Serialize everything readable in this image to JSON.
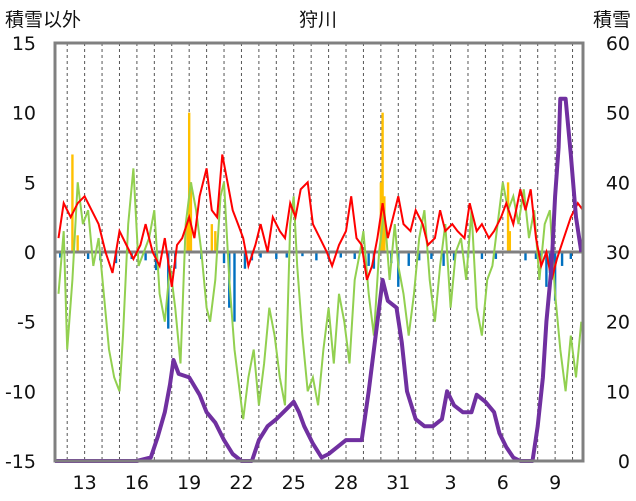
{
  "chart_data": {
    "type": "line",
    "title": "狩川",
    "left_axis": {
      "label": "積雪以外",
      "ticks": [
        15,
        10,
        5,
        0,
        -5,
        -10,
        -15
      ],
      "ylim": [
        -15,
        15
      ]
    },
    "right_axis": {
      "label": "積雪",
      "ticks": [
        60,
        50,
        40,
        30,
        20,
        10,
        0
      ],
      "ylim": [
        0,
        60
      ]
    },
    "x_ticks": [
      "13",
      "16",
      "19",
      "22",
      "25",
      "28",
      "31",
      "3",
      "6",
      "9"
    ],
    "day_range": [
      11.3,
      41.6
    ],
    "tick_days": [
      13,
      16,
      19,
      22,
      25,
      28,
      31,
      34,
      37,
      40
    ],
    "colors": {
      "background": "#ffffff",
      "frame": "#808080",
      "zero_line": "#808080",
      "grid": "#555555",
      "snow_depth": "#7030a0",
      "temperature": "#ff0000",
      "green_series": "#92d050",
      "precip_pos": "#ffc000",
      "precip_neg": "#0070c0"
    },
    "snow_depth": [
      [
        11.3,
        0
      ],
      [
        15.0,
        0
      ],
      [
        16.0,
        0
      ],
      [
        16.8,
        0.5
      ],
      [
        17.2,
        3.5
      ],
      [
        17.6,
        7
      ],
      [
        17.9,
        11
      ],
      [
        18.1,
        14.5
      ],
      [
        18.4,
        12.5
      ],
      [
        19.0,
        12
      ],
      [
        19.6,
        9.5
      ],
      [
        20.0,
        7
      ],
      [
        20.5,
        5.5
      ],
      [
        21.0,
        3
      ],
      [
        21.5,
        1
      ],
      [
        22.0,
        0
      ],
      [
        22.6,
        0
      ],
      [
        23.0,
        3
      ],
      [
        23.5,
        5
      ],
      [
        24.0,
        6
      ],
      [
        24.6,
        7.5
      ],
      [
        25.0,
        8.5
      ],
      [
        25.3,
        7
      ],
      [
        25.6,
        5
      ],
      [
        26.1,
        2.5
      ],
      [
        26.6,
        0.5
      ],
      [
        27.0,
        1
      ],
      [
        27.5,
        2
      ],
      [
        28.0,
        3
      ],
      [
        28.4,
        3
      ],
      [
        28.9,
        3
      ],
      [
        29.3,
        10
      ],
      [
        29.8,
        20
      ],
      [
        30.1,
        26
      ],
      [
        30.4,
        23
      ],
      [
        30.9,
        22
      ],
      [
        31.2,
        17
      ],
      [
        31.5,
        10
      ],
      [
        32.0,
        6
      ],
      [
        32.5,
        5
      ],
      [
        33.0,
        5
      ],
      [
        33.5,
        6
      ],
      [
        33.8,
        10
      ],
      [
        34.2,
        8
      ],
      [
        34.7,
        7
      ],
      [
        35.2,
        7
      ],
      [
        35.5,
        9.5
      ],
      [
        36.0,
        8.5
      ],
      [
        36.5,
        7
      ],
      [
        36.8,
        4
      ],
      [
        37.2,
        2
      ],
      [
        37.6,
        0.5
      ],
      [
        38.0,
        0
      ],
      [
        38.7,
        0
      ],
      [
        39.0,
        5
      ],
      [
        39.3,
        12
      ],
      [
        39.5,
        20
      ],
      [
        39.8,
        28
      ],
      [
        40.0,
        38
      ],
      [
        40.2,
        45
      ],
      [
        40.3,
        52
      ],
      [
        40.6,
        52
      ],
      [
        40.9,
        44
      ],
      [
        41.2,
        35
      ],
      [
        41.5,
        30
      ]
    ],
    "temperature": [
      [
        11.5,
        1
      ],
      [
        11.8,
        3.5
      ],
      [
        12.2,
        2.5
      ],
      [
        12.6,
        3.5
      ],
      [
        13.0,
        4
      ],
      [
        13.4,
        3
      ],
      [
        13.8,
        2
      ],
      [
        14.2,
        0
      ],
      [
        14.6,
        -1.5
      ],
      [
        15.0,
        1.5
      ],
      [
        15.4,
        0.5
      ],
      [
        15.8,
        -0.5
      ],
      [
        16.2,
        0.5
      ],
      [
        16.5,
        2
      ],
      [
        16.9,
        0
      ],
      [
        17.3,
        -1
      ],
      [
        17.6,
        1
      ],
      [
        18.0,
        -2.5
      ],
      [
        18.3,
        0.5
      ],
      [
        18.6,
        1
      ],
      [
        19.0,
        2.5
      ],
      [
        19.3,
        1
      ],
      [
        19.6,
        4
      ],
      [
        20.0,
        6
      ],
      [
        20.3,
        3
      ],
      [
        20.6,
        2.5
      ],
      [
        20.9,
        7
      ],
      [
        21.2,
        5
      ],
      [
        21.5,
        3
      ],
      [
        21.8,
        2
      ],
      [
        22.1,
        1
      ],
      [
        22.4,
        -1
      ],
      [
        22.8,
        0.5
      ],
      [
        23.1,
        2
      ],
      [
        23.5,
        0
      ],
      [
        23.8,
        2.5
      ],
      [
        24.2,
        1.5
      ],
      [
        24.5,
        1
      ],
      [
        24.8,
        3.5
      ],
      [
        25.1,
        2.5
      ],
      [
        25.4,
        4.5
      ],
      [
        25.8,
        5
      ],
      [
        26.1,
        2
      ],
      [
        26.5,
        1
      ],
      [
        26.9,
        0
      ],
      [
        27.2,
        -1
      ],
      [
        27.6,
        0.5
      ],
      [
        28.0,
        1.5
      ],
      [
        28.3,
        4
      ],
      [
        28.6,
        1
      ],
      [
        28.9,
        0.5
      ],
      [
        29.2,
        -2
      ],
      [
        29.5,
        -1
      ],
      [
        29.8,
        1
      ],
      [
        30.1,
        3.5
      ],
      [
        30.4,
        1
      ],
      [
        30.7,
        2.5
      ],
      [
        31.0,
        4
      ],
      [
        31.3,
        2
      ],
      [
        31.7,
        1.5
      ],
      [
        32.0,
        3
      ],
      [
        32.4,
        2
      ],
      [
        32.7,
        0.5
      ],
      [
        33.1,
        1
      ],
      [
        33.4,
        3
      ],
      [
        33.7,
        1.5
      ],
      [
        34.1,
        2
      ],
      [
        34.4,
        1.5
      ],
      [
        34.8,
        1
      ],
      [
        35.1,
        3.5
      ],
      [
        35.5,
        1.5
      ],
      [
        35.8,
        2
      ],
      [
        36.2,
        1
      ],
      [
        36.5,
        1.5
      ],
      [
        36.9,
        2.5
      ],
      [
        37.2,
        3.5
      ],
      [
        37.6,
        2
      ],
      [
        38.0,
        4.5
      ],
      [
        38.3,
        3
      ],
      [
        38.6,
        4.5
      ],
      [
        38.9,
        1
      ],
      [
        39.2,
        -1
      ],
      [
        39.5,
        0
      ],
      [
        39.8,
        -2
      ],
      [
        40.1,
        -0.5
      ],
      [
        40.5,
        1
      ],
      [
        40.9,
        2.5
      ],
      [
        41.3,
        3.5
      ],
      [
        41.6,
        3
      ]
    ],
    "green_series": [
      [
        11.5,
        -3
      ],
      [
        11.8,
        1.5
      ],
      [
        12.0,
        -7
      ],
      [
        12.3,
        -2
      ],
      [
        12.6,
        5
      ],
      [
        12.9,
        2
      ],
      [
        13.2,
        3
      ],
      [
        13.5,
        -1
      ],
      [
        13.8,
        1
      ],
      [
        14.1,
        -3
      ],
      [
        14.4,
        -7
      ],
      [
        14.7,
        -9
      ],
      [
        15.0,
        -10
      ],
      [
        15.2,
        -6
      ],
      [
        15.5,
        2
      ],
      [
        15.8,
        6
      ],
      [
        16.1,
        -1
      ],
      [
        16.4,
        0
      ],
      [
        16.7,
        1
      ],
      [
        17.0,
        3
      ],
      [
        17.3,
        -3
      ],
      [
        17.6,
        -5
      ],
      [
        17.9,
        -1
      ],
      [
        18.2,
        -4
      ],
      [
        18.5,
        -8
      ],
      [
        18.8,
        2
      ],
      [
        19.1,
        5
      ],
      [
        19.4,
        3
      ],
      [
        19.7,
        0
      ],
      [
        20.0,
        -4
      ],
      [
        20.2,
        -5
      ],
      [
        20.5,
        -2
      ],
      [
        20.8,
        4
      ],
      [
        21.0,
        5
      ],
      [
        21.3,
        -2
      ],
      [
        21.6,
        -7
      ],
      [
        21.9,
        -10
      ],
      [
        22.1,
        -12
      ],
      [
        22.4,
        -9
      ],
      [
        22.7,
        -7
      ],
      [
        23.0,
        -11
      ],
      [
        23.3,
        -8
      ],
      [
        23.6,
        -4
      ],
      [
        23.9,
        -6
      ],
      [
        24.2,
        -9
      ],
      [
        24.5,
        -11
      ],
      [
        24.8,
        2
      ],
      [
        25.0,
        4
      ],
      [
        25.2,
        -1
      ],
      [
        25.5,
        -6
      ],
      [
        25.8,
        -10
      ],
      [
        26.1,
        -9
      ],
      [
        26.4,
        -11
      ],
      [
        26.7,
        -7
      ],
      [
        27.0,
        -4
      ],
      [
        27.3,
        -8
      ],
      [
        27.6,
        -3
      ],
      [
        27.9,
        -5
      ],
      [
        28.2,
        -8
      ],
      [
        28.5,
        -2
      ],
      [
        28.8,
        0
      ],
      [
        29.0,
        1.5
      ],
      [
        29.3,
        -3
      ],
      [
        29.6,
        -6
      ],
      [
        29.9,
        0
      ],
      [
        30.2,
        3
      ],
      [
        30.5,
        -2
      ],
      [
        30.8,
        2
      ],
      [
        31.0,
        -1
      ],
      [
        31.3,
        -3
      ],
      [
        31.6,
        -6
      ],
      [
        31.9,
        -3
      ],
      [
        32.2,
        1
      ],
      [
        32.5,
        3
      ],
      [
        32.8,
        -2
      ],
      [
        33.1,
        -5
      ],
      [
        33.4,
        -1
      ],
      [
        33.7,
        2
      ],
      [
        34.0,
        -4
      ],
      [
        34.3,
        0
      ],
      [
        34.6,
        1
      ],
      [
        34.9,
        -2
      ],
      [
        35.2,
        3
      ],
      [
        35.5,
        -4
      ],
      [
        35.8,
        -6
      ],
      [
        36.1,
        -2
      ],
      [
        36.4,
        -1
      ],
      [
        36.7,
        2
      ],
      [
        37.0,
        5
      ],
      [
        37.3,
        3
      ],
      [
        37.6,
        4
      ],
      [
        37.9,
        2
      ],
      [
        38.2,
        4.5
      ],
      [
        38.5,
        1
      ],
      [
        38.8,
        3
      ],
      [
        39.1,
        -2
      ],
      [
        39.4,
        2
      ],
      [
        39.7,
        3
      ],
      [
        40.0,
        -3
      ],
      [
        40.3,
        -7
      ],
      [
        40.6,
        -10
      ],
      [
        40.9,
        -6
      ],
      [
        41.2,
        -9
      ],
      [
        41.5,
        -5
      ]
    ],
    "precip_bars": [
      [
        11.6,
        -0.4
      ],
      [
        12.3,
        7
      ],
      [
        12.6,
        1.2
      ],
      [
        13.2,
        -0.5
      ],
      [
        13.9,
        -0.6
      ],
      [
        14.8,
        -0.8
      ],
      [
        15.7,
        -0.5
      ],
      [
        16.5,
        -0.6
      ],
      [
        17.1,
        -1.3
      ],
      [
        17.8,
        -5.5
      ],
      [
        18.2,
        -1.2
      ],
      [
        18.9,
        2.5
      ],
      [
        19.0,
        10
      ],
      [
        19.1,
        5
      ],
      [
        19.7,
        -0.5
      ],
      [
        20.3,
        2
      ],
      [
        20.5,
        1.5
      ],
      [
        21.0,
        -0.8
      ],
      [
        21.3,
        -4
      ],
      [
        21.6,
        -5
      ],
      [
        22.2,
        -1.2
      ],
      [
        22.6,
        -0.6
      ],
      [
        23.1,
        -0.4
      ],
      [
        24.0,
        -0.5
      ],
      [
        24.6,
        -0.4
      ],
      [
        25.5,
        -0.3
      ],
      [
        26.3,
        -0.6
      ],
      [
        27.0,
        -0.5
      ],
      [
        27.7,
        -0.4
      ],
      [
        28.5,
        -0.5
      ],
      [
        29.3,
        -1
      ],
      [
        29.6,
        -1.2
      ],
      [
        30.0,
        5
      ],
      [
        30.1,
        10
      ],
      [
        30.2,
        4
      ],
      [
        30.6,
        -0.8
      ],
      [
        31.0,
        -2.5
      ],
      [
        31.6,
        -1
      ],
      [
        32.2,
        -0.6
      ],
      [
        32.9,
        -0.5
      ],
      [
        33.6,
        -1
      ],
      [
        34.2,
        -0.6
      ],
      [
        35.0,
        -0.4
      ],
      [
        35.8,
        -0.5
      ],
      [
        36.6,
        -0.5
      ],
      [
        37.3,
        5
      ],
      [
        37.4,
        1.5
      ],
      [
        38.3,
        -0.6
      ],
      [
        38.9,
        -0.5
      ],
      [
        39.2,
        -0.4
      ],
      [
        39.5,
        -2.5
      ],
      [
        39.7,
        -1.5
      ],
      [
        40.0,
        -3.5
      ],
      [
        40.4,
        -1
      ],
      [
        40.9,
        -0.5
      ]
    ]
  }
}
